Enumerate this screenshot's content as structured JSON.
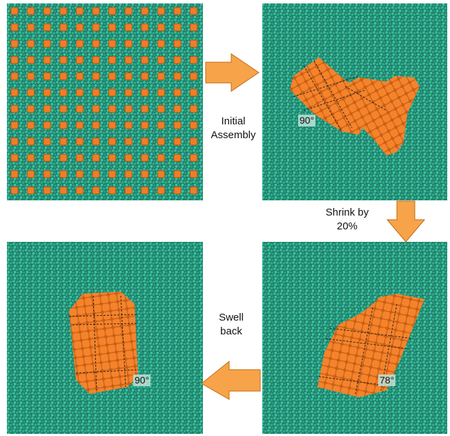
{
  "steps": [
    {
      "label": "Initial Assembly"
    },
    {
      "label": "Shrink by 20%"
    },
    {
      "label": "Swell back"
    }
  ],
  "angles": [
    "90°",
    "78°",
    "90°"
  ]
}
